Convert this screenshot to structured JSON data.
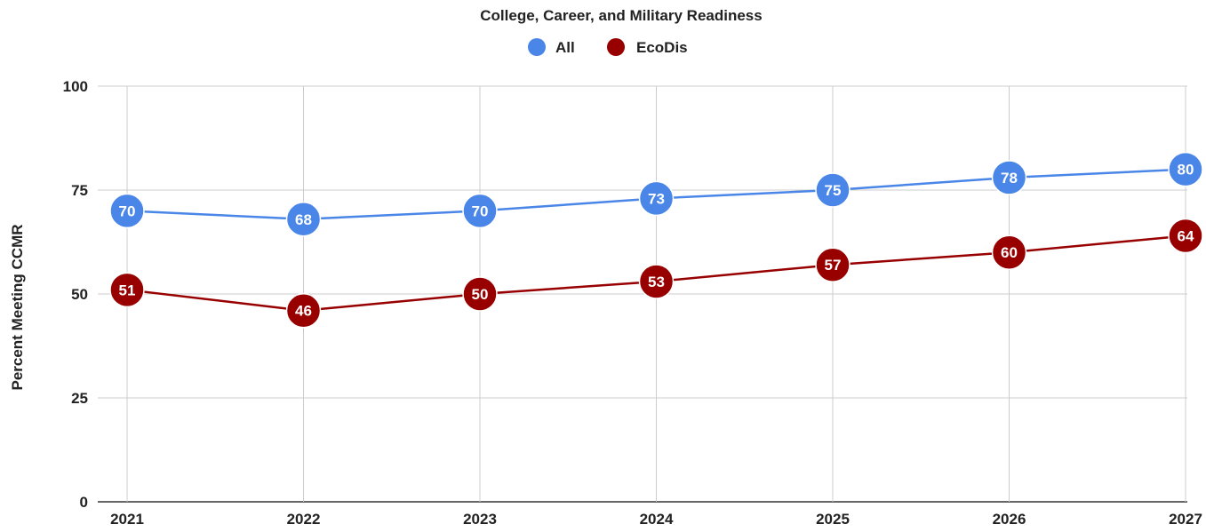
{
  "chart_data": {
    "type": "line",
    "title": "College, Career, and Military Readiness",
    "xlabel": "",
    "ylabel": "Percent Meeting CCMR",
    "x": [
      "2021",
      "2022",
      "2023",
      "2024",
      "2025",
      "2026",
      "2027"
    ],
    "ylim": [
      0,
      100
    ],
    "yticks": [
      0,
      25,
      50,
      75,
      100
    ],
    "grid": true,
    "legend_position": "top",
    "series": [
      {
        "name": "All",
        "color": "#4a86e8",
        "values": [
          70,
          68,
          70,
          73,
          75,
          78,
          80
        ]
      },
      {
        "name": "EcoDis",
        "color": "#980000",
        "values": [
          51,
          46,
          50,
          53,
          57,
          60,
          64
        ]
      }
    ]
  }
}
